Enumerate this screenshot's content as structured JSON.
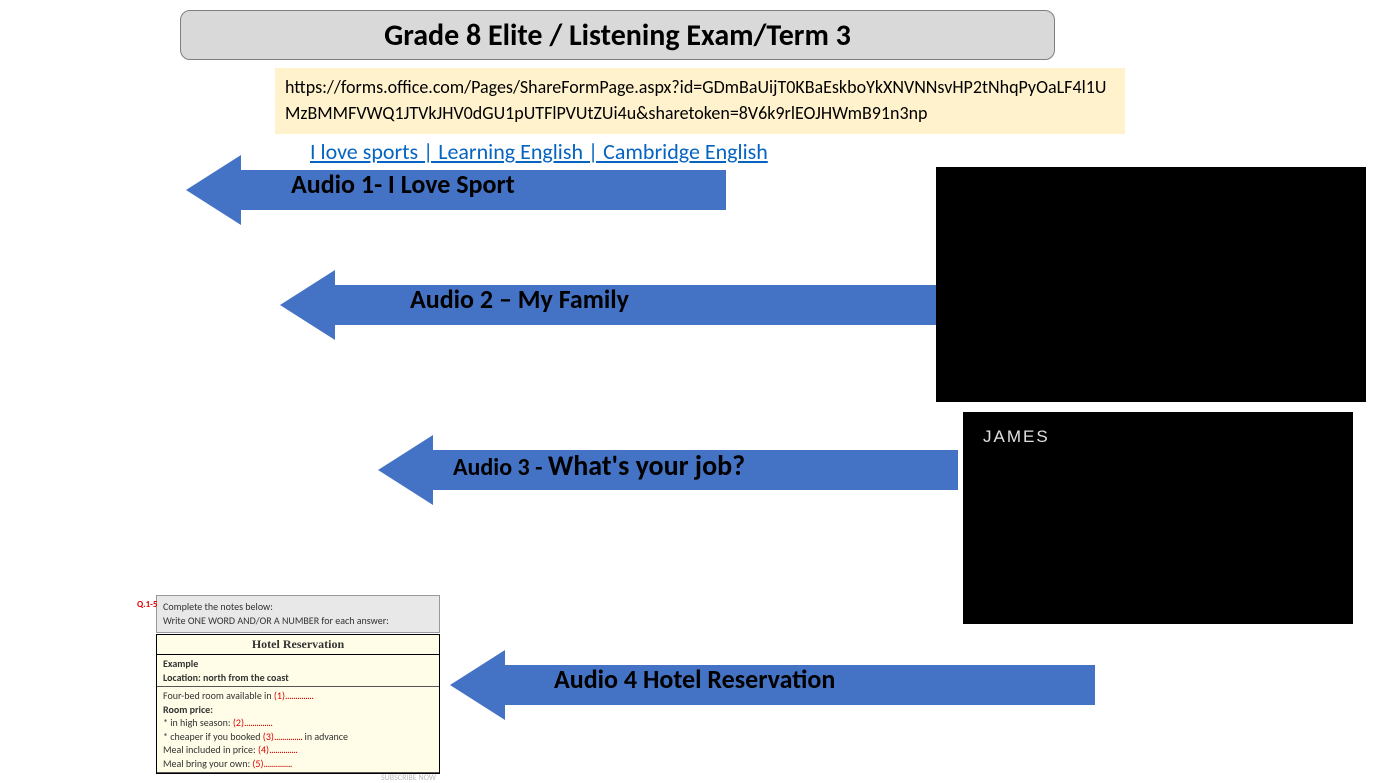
{
  "title": "Grade 8 Elite / Listening Exam/Term 3",
  "url_text": "https://forms.office.com/Pages/ShareFormPage.aspx?id=GDmBaUijT0KBaEskboYkXNVNNsvHP2tNhqPyOaLF4l1UMzBMMFVWQ1JTVkJHV0dGU1pUTFlPVUtZUi4u&sharetoken=8V6k9rlEOJHWmB91n3np",
  "link_text": "I love sports | Learning English | Cambridge English",
  "arrows": {
    "a1": "Audio 1- I Love Sport",
    "a2": "Audio 2 – My Family",
    "a3_prefix": "Audio 3 - ",
    "a3_main": "What's your job?",
    "a4": "Audio 4 Hotel Reservation"
  },
  "video2_label": "JAMES",
  "form": {
    "qnum": "Q.1-5",
    "instr1": "Complete the notes below:",
    "instr2": "Write ONE WORD AND/OR A NUMBER for each answer:",
    "heading": "Hotel Reservation",
    "example_label": "Example",
    "example_text": "Location: north from the coast",
    "row1_a": "Four-bed room available in ",
    "row1_b": "(1)",
    "row1_c": "..............",
    "price_label": "Room price:",
    "row2_a": "* in high season: ",
    "row2_b": "(2)",
    "row2_c": "..............",
    "row3_a": "* cheaper if you booked ",
    "row3_b": "(3)",
    "row3_c": "..............",
    "row3_d": " in advance",
    "row4_a": "Meal included in price: ",
    "row4_b": "(4)",
    "row4_c": "..............",
    "row5_a": "Meal bring your own: ",
    "row5_b": "(5)",
    "row5_c": "..............",
    "subscribe": "SUBSCRIBE NOW"
  },
  "colors": {
    "title_bg": "#d9d9d9",
    "url_bg": "#fff2cc",
    "arrow_fill": "#4472c4",
    "link_color": "#0563c1",
    "form_bg": "#fffde7",
    "blank_color": "#d00000"
  }
}
